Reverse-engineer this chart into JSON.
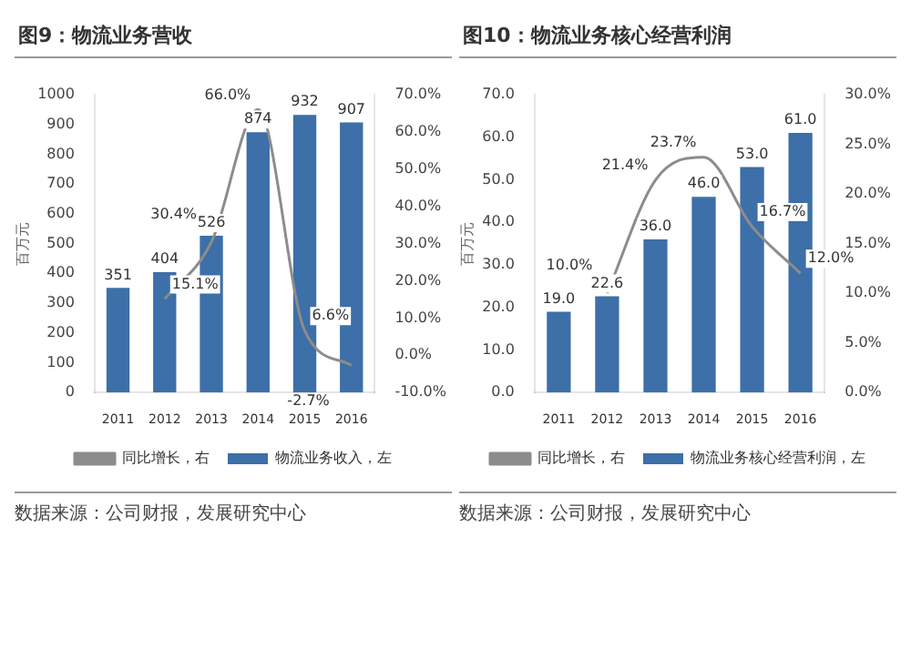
{
  "chart_data": [
    {
      "type": "bar",
      "title": "图9：物流业务营收",
      "ylabel": "百万元",
      "categories": [
        "2011",
        "2012",
        "2013",
        "2014",
        "2015",
        "2016"
      ],
      "ylim": [
        0,
        1000
      ],
      "yticks": [
        0,
        100,
        200,
        300,
        400,
        500,
        600,
        700,
        800,
        900,
        1000
      ],
      "y2lim": [
        -10,
        70
      ],
      "y2ticks": [
        {
          "value": -10,
          "label": "-10.0%"
        },
        {
          "value": 0,
          "label": "0.0%"
        },
        {
          "value": 10,
          "label": "10.0%"
        },
        {
          "value": 20,
          "label": "20.0%"
        },
        {
          "value": 30,
          "label": "30.0%"
        },
        {
          "value": 40,
          "label": "40.0%"
        },
        {
          "value": 50,
          "label": "50.0%"
        },
        {
          "value": 60,
          "label": "60.0%"
        },
        {
          "value": 70,
          "label": "70.0%"
        }
      ],
      "legend": "bottom",
      "grid": false,
      "marker": "none",
      "line_style": "solid",
      "series": [
        {
          "name": "物流业务收入，左",
          "color": "#3d6fa8",
          "values": [
            351,
            404,
            526,
            874,
            932,
            907
          ],
          "value_labels": [
            "351",
            "404",
            "526",
            "874",
            "932",
            "907"
          ]
        },
        {
          "name": "同比增长，右",
          "type": "line",
          "axis": "y2",
          "color": "#8c8c8c",
          "values": [
            null,
            15.1,
            30.4,
            66.0,
            6.6,
            -2.7
          ],
          "value_labels": [
            null,
            "15.1%",
            "30.4%",
            "66.0%",
            "6.6%",
            "-2.7%"
          ]
        }
      ],
      "annotations": [
        "数据来源：公司财报，发展研究中心"
      ]
    },
    {
      "type": "bar",
      "title": "图10：物流业务核心经营利润",
      "ylabel": "百万元",
      "categories": [
        "2011",
        "2012",
        "2013",
        "2014",
        "2015",
        "2016"
      ],
      "ylim": [
        0,
        70
      ],
      "yticks": [
        {
          "value": 0,
          "label": "0.0"
        },
        {
          "value": 10,
          "label": "10.0"
        },
        {
          "value": 20,
          "label": "20.0"
        },
        {
          "value": 30,
          "label": "30.0"
        },
        {
          "value": 40,
          "label": "40.0"
        },
        {
          "value": 50,
          "label": "50.0"
        },
        {
          "value": 60,
          "label": "60.0"
        },
        {
          "value": 70,
          "label": "70.0"
        }
      ],
      "y2lim": [
        0,
        30
      ],
      "y2ticks": [
        {
          "value": 0,
          "label": "0.0%"
        },
        {
          "value": 5,
          "label": "5.0%"
        },
        {
          "value": 10,
          "label": "10.0%"
        },
        {
          "value": 15,
          "label": "15.0%"
        },
        {
          "value": 20,
          "label": "20.0%"
        },
        {
          "value": 25,
          "label": "25.0%"
        },
        {
          "value": 30,
          "label": "30.0%"
        }
      ],
      "legend": "bottom",
      "grid": false,
      "marker": "none",
      "line_style": "solid",
      "series": [
        {
          "name": "物流业务核心经营利润，左",
          "color": "#3d6fa8",
          "values": [
            19.0,
            22.6,
            36.0,
            46.0,
            53.0,
            61.0
          ],
          "value_labels": [
            "19.0",
            "22.6",
            "36.0",
            "46.0",
            "53.0",
            "61.0"
          ]
        },
        {
          "name": "同比增长，右",
          "type": "line",
          "axis": "y2",
          "color": "#8c8c8c",
          "values": [
            null,
            10.0,
            21.4,
            23.7,
            16.7,
            12.0
          ],
          "value_labels": [
            null,
            "10.0%",
            "21.4%",
            "23.7%",
            "16.7%",
            "12.0%"
          ]
        }
      ],
      "annotations": [
        "数据来源：公司财报，发展研究中心"
      ]
    }
  ]
}
